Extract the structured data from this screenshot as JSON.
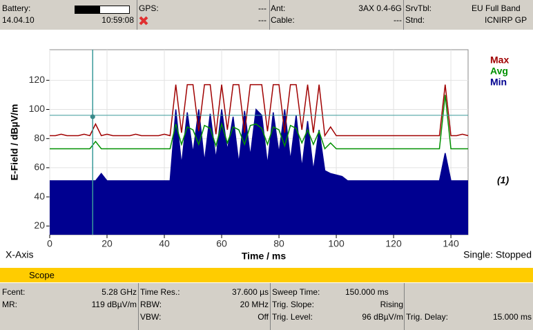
{
  "header": {
    "battery_label": "Battery:",
    "date": "14.04.10",
    "time": "10:59:08",
    "gps_label": "GPS:",
    "gps_value": "---",
    "gps_value_2": "---",
    "ant_label": "Ant:",
    "ant_value": "3AX 0.4-6G",
    "cable_label": "Cable:",
    "cable_value": "---",
    "srvtbl_label": "SrvTbl:",
    "srvtbl_value": "EU Full Band",
    "stnd_label": "Stnd:",
    "stnd_value": "ICNIRP GP"
  },
  "chart_data": {
    "type": "line",
    "ylabel": "E-Field / dBµV/m",
    "xlabel": "Time / ms",
    "x_axis_label": "X-Axis",
    "status": "Single: Stopped",
    "annotation": "(1)",
    "xlim": [
      0,
      146
    ],
    "xticks": [
      0,
      20,
      40,
      60,
      80,
      100,
      120,
      140
    ],
    "ylim": [
      14,
      141
    ],
    "yticks": [
      20,
      40,
      60,
      80,
      100,
      120
    ],
    "grid": true,
    "cursor": {
      "x": 15,
      "y": 95
    },
    "trigger_level": 96,
    "x": [
      0,
      2,
      4,
      6,
      8,
      10,
      12,
      14,
      16,
      18,
      20,
      22,
      24,
      26,
      28,
      30,
      32,
      34,
      36,
      38,
      40,
      42,
      44,
      46,
      48,
      50,
      52,
      54,
      56,
      58,
      60,
      62,
      64,
      66,
      68,
      70,
      72,
      74,
      76,
      78,
      80,
      82,
      84,
      86,
      88,
      90,
      92,
      94,
      96,
      98,
      100,
      102,
      104,
      106,
      108,
      110,
      112,
      114,
      116,
      118,
      120,
      122,
      124,
      126,
      128,
      130,
      132,
      134,
      136,
      138,
      140,
      142,
      144,
      146
    ],
    "series": [
      {
        "name": "Max",
        "color": "#a00000",
        "values": [
          82,
          82,
          83,
          82,
          82,
          82,
          83,
          82,
          90,
          82,
          83,
          82,
          82,
          82,
          82,
          83,
          82,
          82,
          82,
          82,
          83,
          82,
          117,
          84,
          117,
          117,
          85,
          117,
          117,
          83,
          117,
          86,
          117,
          117,
          84,
          117,
          117,
          117,
          85,
          117,
          117,
          84,
          117,
          117,
          86,
          117,
          84,
          117,
          82,
          88,
          82,
          82,
          82,
          82,
          82,
          82,
          82,
          82,
          82,
          82,
          82,
          82,
          82,
          82,
          82,
          82,
          82,
          82,
          82,
          117,
          82,
          82,
          83,
          82
        ]
      },
      {
        "name": "Avg",
        "color": "#009000",
        "values": [
          73,
          73,
          73,
          73,
          73,
          73,
          73,
          73,
          78,
          73,
          73,
          73,
          73,
          73,
          73,
          73,
          73,
          73,
          73,
          73,
          73,
          73,
          90,
          76,
          88,
          86,
          76,
          89,
          87,
          75,
          90,
          77,
          88,
          86,
          76,
          89,
          90,
          87,
          76,
          88,
          86,
          75,
          89,
          87,
          77,
          86,
          76,
          85,
          73,
          77,
          73,
          73,
          73,
          73,
          73,
          73,
          73,
          73,
          73,
          73,
          73,
          73,
          73,
          73,
          73,
          73,
          73,
          73,
          73,
          110,
          73,
          73,
          73,
          73
        ]
      },
      {
        "name": "Min",
        "color": "#000090",
        "values": [
          51,
          51,
          51,
          51,
          51,
          51,
          51,
          51,
          51,
          56,
          51,
          51,
          51,
          51,
          51,
          51,
          51,
          51,
          51,
          51,
          51,
          51,
          100,
          62,
          98,
          70,
          100,
          64,
          97,
          66,
          100,
          72,
          95,
          63,
          99,
          68,
          100,
          96,
          62,
          98,
          70,
          100,
          65,
          96,
          60,
          92,
          58,
          86,
          58,
          56,
          55,
          54,
          51,
          51,
          51,
          51,
          51,
          51,
          51,
          51,
          51,
          51,
          51,
          51,
          51,
          51,
          51,
          51,
          51,
          70,
          51,
          51,
          51,
          51
        ]
      }
    ]
  },
  "mode_bar": "Scope",
  "footer": {
    "fcent_label": "Fcent:",
    "fcent_value": "5.28 GHz",
    "mr_label": "MR:",
    "mr_value": "119 dBµV/m",
    "timeres_label": "Time Res.:",
    "timeres_value": "37.600 µs",
    "rbw_label": "RBW:",
    "rbw_value": "20 MHz",
    "vbw_label": "VBW:",
    "vbw_value": "Off",
    "sweep_label": "Sweep Time:",
    "sweep_value": "150.000 ms",
    "slope_label": "Trig. Slope:",
    "slope_value": "Rising",
    "level_label": "Trig. Level:",
    "level_value": "96 dBµV/m",
    "delay_label": "Trig. Delay:",
    "delay_value": "15.000 ms"
  }
}
